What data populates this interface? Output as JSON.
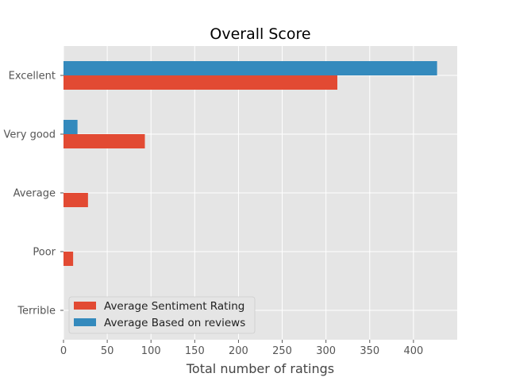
{
  "chart_data": {
    "type": "bar",
    "orientation": "horizontal",
    "title": "Overall Score",
    "xlabel": "Total number of ratings",
    "ylabel": "",
    "categories": [
      "Excellent",
      "Very good",
      "Average",
      "Poor",
      "Terrible"
    ],
    "series": [
      {
        "name": "Average Sentiment Rating",
        "color": "#e24a33",
        "values": [
          313,
          93,
          28,
          11,
          0
        ]
      },
      {
        "name": "Average Based on reviews",
        "color": "#348abd",
        "values": [
          427,
          16,
          0,
          0,
          0
        ]
      }
    ],
    "xlim": [
      0,
      450
    ],
    "xticks": [
      0,
      50,
      100,
      150,
      200,
      250,
      300,
      350,
      400
    ],
    "grid": true,
    "legend_position": "lower-left",
    "background_color": "#e5e5e5",
    "grid_color": "#ffffff"
  }
}
